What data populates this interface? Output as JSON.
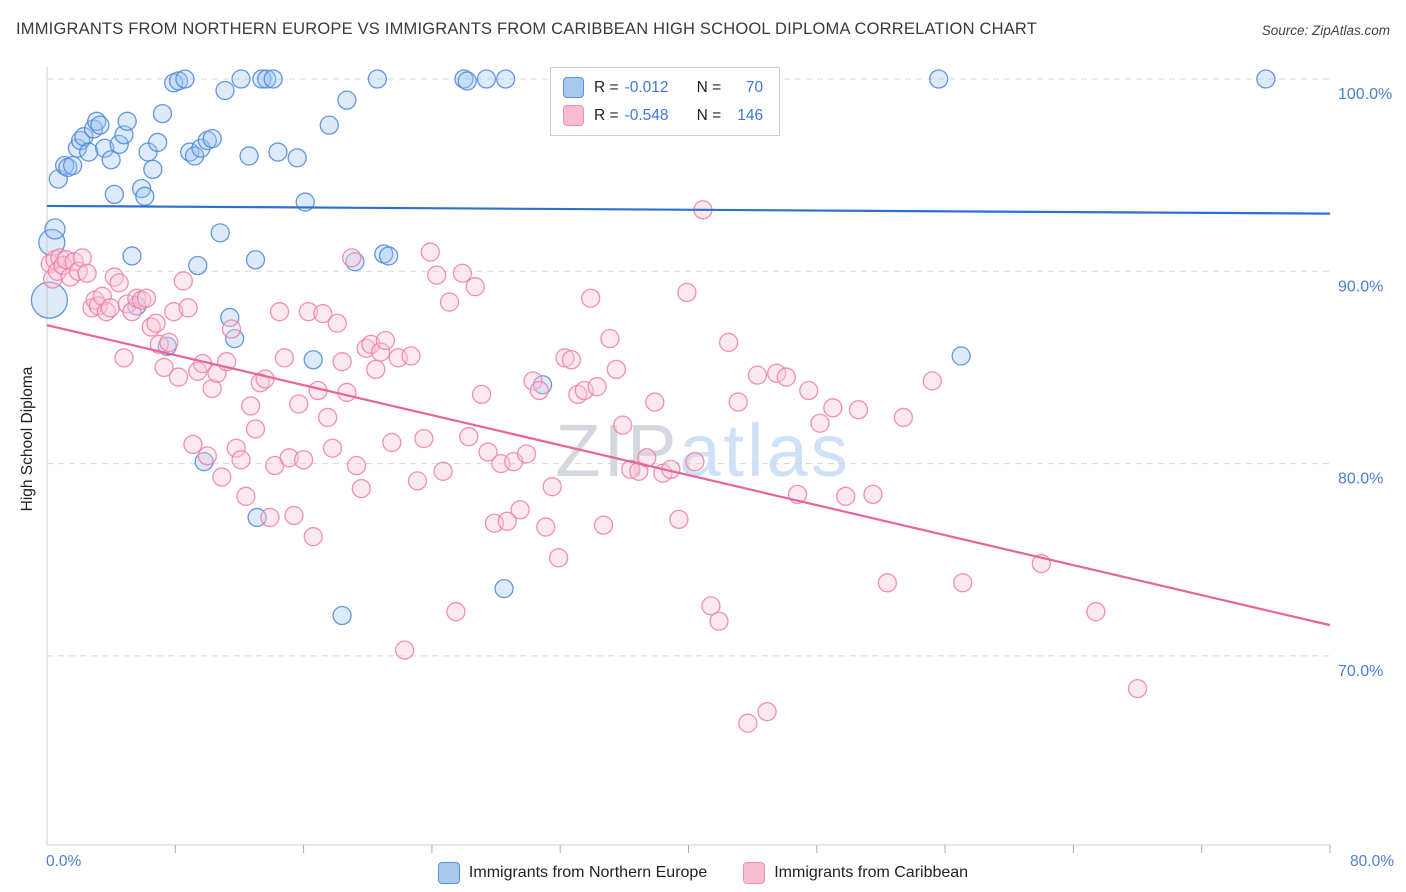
{
  "header": {
    "title": "IMMIGRANTS FROM NORTHERN EUROPE VS IMMIGRANTS FROM CARIBBEAN HIGH SCHOOL DIPLOMA CORRELATION CHART",
    "source": "Source: ZipAtlas.com"
  },
  "watermark": {
    "zip": "ZIP",
    "atlas": "atlas"
  },
  "axes": {
    "y_label": "High School Diploma",
    "x_min_label": "0.0%",
    "x_max_label": "80.0%"
  },
  "legend_box": {
    "rows": [
      {
        "r_label": "R =",
        "r": "-0.012",
        "n_label": "N =",
        "n": "70"
      },
      {
        "r_label": "R =",
        "r": "-0.548",
        "n_label": "N =",
        "n": "146"
      }
    ]
  },
  "bottom_legend": {
    "items": [
      {
        "label": "Immigrants from Northern Europe"
      },
      {
        "label": "Immigrants from Caribbean"
      }
    ]
  },
  "colors": {
    "blue_stroke": "#4a86d8",
    "blue_fill": "#9ec3f0",
    "pink_stroke": "#f07ca8",
    "pink_fill": "#f8c8d8",
    "blue_trend": "#2f6fd0",
    "pink_trend": "#e8649a",
    "gridline": "#d8d8d8",
    "axis": "#cfcfcf",
    "tick_label": "#4a7fd4"
  },
  "chart_data": {
    "type": "scatter",
    "title": "Immigrants from Northern Europe vs Immigrants from Caribbean High School Diploma",
    "xlabel": "",
    "ylabel": "High School Diploma",
    "xlim": [
      0,
      80
    ],
    "ylim": [
      60,
      101
    ],
    "x_tick_step": 8,
    "grid": true,
    "legend_position": "top-center",
    "y_ticks": [
      {
        "value": 100,
        "label": "100.0%"
      },
      {
        "value": 90,
        "label": "90.0%"
      },
      {
        "value": 80,
        "label": "80.0%"
      },
      {
        "value": 70,
        "label": "70.0%"
      }
    ],
    "trend_lines": [
      {
        "name": "northern-europe-trend",
        "x1": 0,
        "y1": 93.4,
        "x2": 80,
        "y2": 93.0,
        "color": "#2f6fd0"
      },
      {
        "name": "caribbean-trend",
        "x1": 0,
        "y1": 87.2,
        "x2": 80,
        "y2": 71.6,
        "color": "#e8649a"
      }
    ],
    "series": [
      {
        "name": "Immigrants from Northern Europe",
        "R": -0.012,
        "N": 70,
        "color": "#4a86d8",
        "fill": "#9ec3f0",
        "fill_opacity": 0.35,
        "point_name": "data-point-northern-europe",
        "points": [
          [
            0.15,
            88.5,
            18
          ],
          [
            0.3,
            91.5,
            13
          ],
          [
            0.5,
            92.2,
            10
          ],
          [
            0.7,
            94.8
          ],
          [
            1.1,
            95.5
          ],
          [
            1.3,
            95.4
          ],
          [
            1.6,
            95.5
          ],
          [
            1.9,
            96.4
          ],
          [
            2.1,
            96.8
          ],
          [
            2.3,
            97.0
          ],
          [
            2.6,
            96.2
          ],
          [
            2.9,
            97.4
          ],
          [
            3.1,
            97.8
          ],
          [
            3.3,
            97.6
          ],
          [
            3.6,
            96.4
          ],
          [
            4.0,
            95.8
          ],
          [
            4.2,
            94.0
          ],
          [
            4.5,
            96.6
          ],
          [
            4.8,
            97.1
          ],
          [
            5.0,
            97.8
          ],
          [
            5.3,
            90.8
          ],
          [
            5.6,
            88.2
          ],
          [
            5.9,
            94.3
          ],
          [
            6.1,
            93.9
          ],
          [
            6.3,
            96.2
          ],
          [
            6.6,
            95.3
          ],
          [
            6.9,
            96.7
          ],
          [
            7.2,
            98.2
          ],
          [
            7.5,
            86.1
          ],
          [
            7.9,
            99.8
          ],
          [
            8.2,
            99.9
          ],
          [
            8.6,
            100.0
          ],
          [
            8.9,
            96.2
          ],
          [
            9.2,
            96.0
          ],
          [
            9.4,
            90.3
          ],
          [
            9.6,
            96.4
          ],
          [
            9.8,
            80.1
          ],
          [
            10.0,
            96.8
          ],
          [
            10.3,
            96.9
          ],
          [
            10.8,
            92.0
          ],
          [
            11.1,
            99.4
          ],
          [
            11.4,
            87.6
          ],
          [
            11.7,
            86.5
          ],
          [
            12.1,
            100.0
          ],
          [
            12.6,
            96.0
          ],
          [
            13.0,
            90.6
          ],
          [
            13.1,
            77.2
          ],
          [
            13.4,
            100.0
          ],
          [
            13.7,
            100.0
          ],
          [
            14.1,
            100.0
          ],
          [
            14.4,
            96.2
          ],
          [
            15.6,
            95.9
          ],
          [
            16.1,
            93.6
          ],
          [
            16.6,
            85.4
          ],
          [
            17.6,
            97.6
          ],
          [
            18.4,
            72.1
          ],
          [
            18.7,
            98.9
          ],
          [
            19.2,
            90.5
          ],
          [
            20.6,
            100.0
          ],
          [
            21.0,
            90.9
          ],
          [
            21.3,
            90.8
          ],
          [
            26.0,
            100.0
          ],
          [
            26.2,
            99.9
          ],
          [
            27.4,
            100.0
          ],
          [
            28.6,
            100.0
          ],
          [
            28.5,
            73.5
          ],
          [
            30.9,
            84.1
          ],
          [
            55.6,
            100.0
          ],
          [
            57.0,
            85.6
          ],
          [
            76.0,
            100.0
          ]
        ]
      },
      {
        "name": "Immigrants from Caribbean",
        "R": -0.548,
        "N": 146,
        "color": "#f07ca8",
        "fill": "#f8c8d8",
        "fill_opacity": 0.4,
        "point_name": "data-point-caribbean",
        "points": [
          [
            0.2,
            90.4
          ],
          [
            0.35,
            89.6
          ],
          [
            0.5,
            90.6
          ],
          [
            0.65,
            90.0
          ],
          [
            0.8,
            90.7
          ],
          [
            1.0,
            90.3
          ],
          [
            1.2,
            90.6
          ],
          [
            1.45,
            89.7
          ],
          [
            1.7,
            90.5
          ],
          [
            1.95,
            90.0
          ],
          [
            2.2,
            90.7
          ],
          [
            2.5,
            89.9
          ],
          [
            2.8,
            88.1
          ],
          [
            3.0,
            88.5
          ],
          [
            3.2,
            88.2
          ],
          [
            3.45,
            88.7
          ],
          [
            3.7,
            87.9
          ],
          [
            3.95,
            88.1
          ],
          [
            4.2,
            89.7
          ],
          [
            4.5,
            89.4
          ],
          [
            4.8,
            85.5
          ],
          [
            5.0,
            88.3
          ],
          [
            5.3,
            87.9
          ],
          [
            5.6,
            88.6
          ],
          [
            5.9,
            88.5
          ],
          [
            6.2,
            88.6
          ],
          [
            6.5,
            87.1
          ],
          [
            6.8,
            87.3
          ],
          [
            7.0,
            86.2
          ],
          [
            7.3,
            85.0
          ],
          [
            7.6,
            86.3
          ],
          [
            7.9,
            87.9
          ],
          [
            8.2,
            84.5
          ],
          [
            8.5,
            89.5
          ],
          [
            8.8,
            88.1
          ],
          [
            9.1,
            81.0
          ],
          [
            9.4,
            84.8
          ],
          [
            9.7,
            85.2
          ],
          [
            10.0,
            80.4
          ],
          [
            10.3,
            83.9
          ],
          [
            10.6,
            84.7
          ],
          [
            10.9,
            79.3
          ],
          [
            11.2,
            85.3
          ],
          [
            11.5,
            87.0
          ],
          [
            11.8,
            80.8
          ],
          [
            12.1,
            80.2
          ],
          [
            12.4,
            78.3
          ],
          [
            12.7,
            83.0
          ],
          [
            13.0,
            81.8
          ],
          [
            13.3,
            84.2
          ],
          [
            13.6,
            84.4
          ],
          [
            13.9,
            77.2
          ],
          [
            14.2,
            79.9
          ],
          [
            14.5,
            87.9
          ],
          [
            14.8,
            85.5
          ],
          [
            15.1,
            80.3
          ],
          [
            15.4,
            77.3
          ],
          [
            15.7,
            83.1
          ],
          [
            16.0,
            80.2
          ],
          [
            16.3,
            87.9
          ],
          [
            16.6,
            76.2
          ],
          [
            16.9,
            83.8
          ],
          [
            17.2,
            87.8
          ],
          [
            17.5,
            82.4
          ],
          [
            17.8,
            80.8
          ],
          [
            18.1,
            87.3
          ],
          [
            18.4,
            85.3
          ],
          [
            18.7,
            83.7
          ],
          [
            19.0,
            90.7
          ],
          [
            19.3,
            79.9
          ],
          [
            19.6,
            78.7
          ],
          [
            19.9,
            86.0
          ],
          [
            20.2,
            86.2
          ],
          [
            20.5,
            84.9
          ],
          [
            20.8,
            85.8
          ],
          [
            21.1,
            86.4
          ],
          [
            21.5,
            81.1
          ],
          [
            21.9,
            85.5
          ],
          [
            22.3,
            70.3
          ],
          [
            22.7,
            85.6
          ],
          [
            23.1,
            79.1
          ],
          [
            23.5,
            81.3
          ],
          [
            23.9,
            91.0
          ],
          [
            24.3,
            89.8
          ],
          [
            24.7,
            79.6
          ],
          [
            25.1,
            88.4
          ],
          [
            25.5,
            72.3
          ],
          [
            25.9,
            89.9
          ],
          [
            26.3,
            81.4
          ],
          [
            26.7,
            89.2
          ],
          [
            27.1,
            83.6
          ],
          [
            27.5,
            80.6
          ],
          [
            27.9,
            76.9
          ],
          [
            28.3,
            80.0
          ],
          [
            28.7,
            77.0
          ],
          [
            29.1,
            80.1
          ],
          [
            29.5,
            77.6
          ],
          [
            29.9,
            80.5
          ],
          [
            30.3,
            84.3
          ],
          [
            30.7,
            83.8
          ],
          [
            31.1,
            76.7
          ],
          [
            31.5,
            78.8
          ],
          [
            31.9,
            75.1
          ],
          [
            32.3,
            85.5
          ],
          [
            32.7,
            85.4
          ],
          [
            33.1,
            83.6
          ],
          [
            33.5,
            83.8
          ],
          [
            33.9,
            88.6
          ],
          [
            34.3,
            84.0
          ],
          [
            34.7,
            76.8
          ],
          [
            35.1,
            86.5
          ],
          [
            35.5,
            84.9
          ],
          [
            35.9,
            82.0
          ],
          [
            36.4,
            79.7
          ],
          [
            36.9,
            79.6
          ],
          [
            37.4,
            80.3
          ],
          [
            37.9,
            83.2
          ],
          [
            38.4,
            79.5
          ],
          [
            38.9,
            79.7
          ],
          [
            39.4,
            77.1
          ],
          [
            39.9,
            88.9
          ],
          [
            40.4,
            80.1
          ],
          [
            40.9,
            93.2
          ],
          [
            41.4,
            72.6
          ],
          [
            41.9,
            71.8
          ],
          [
            42.5,
            86.3
          ],
          [
            43.1,
            83.2
          ],
          [
            43.7,
            66.5
          ],
          [
            44.3,
            84.6
          ],
          [
            44.9,
            67.1
          ],
          [
            45.5,
            84.7
          ],
          [
            46.1,
            84.5
          ],
          [
            46.8,
            78.4
          ],
          [
            47.5,
            83.8
          ],
          [
            48.2,
            82.1
          ],
          [
            49.0,
            82.9
          ],
          [
            49.8,
            78.3
          ],
          [
            50.6,
            82.8
          ],
          [
            51.5,
            78.4
          ],
          [
            52.4,
            73.8
          ],
          [
            53.4,
            82.4
          ],
          [
            55.2,
            84.3
          ],
          [
            57.1,
            73.8
          ],
          [
            62.0,
            74.8
          ],
          [
            65.4,
            72.3
          ],
          [
            68.0,
            68.3
          ]
        ]
      }
    ]
  }
}
